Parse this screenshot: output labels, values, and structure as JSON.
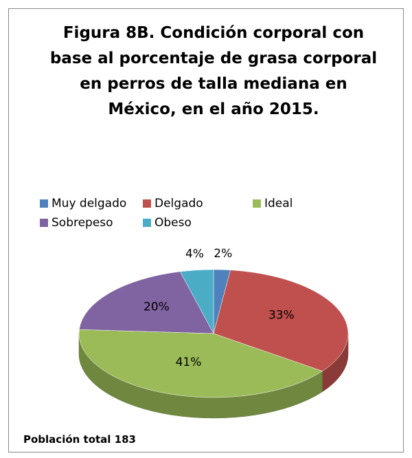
{
  "chart_data": {
    "type": "pie",
    "title": "Figura 8B. Condición corporal con base al porcentaje de grasa corporal en perros de talla mediana en México, en el año 2015.",
    "categories": [
      "Muy delgado",
      "Delgado",
      "Ideal",
      "Sobrepeso",
      "Obeso"
    ],
    "values": [
      2,
      33,
      41,
      20,
      4
    ],
    "value_labels": [
      "2%",
      "33%",
      "41%",
      "20%",
      "4%"
    ],
    "colors": [
      "#4f81bd",
      "#c0504d",
      "#9bbb59",
      "#8064a2",
      "#4bacc6"
    ],
    "legend": "top",
    "note": "Población total 183"
  }
}
